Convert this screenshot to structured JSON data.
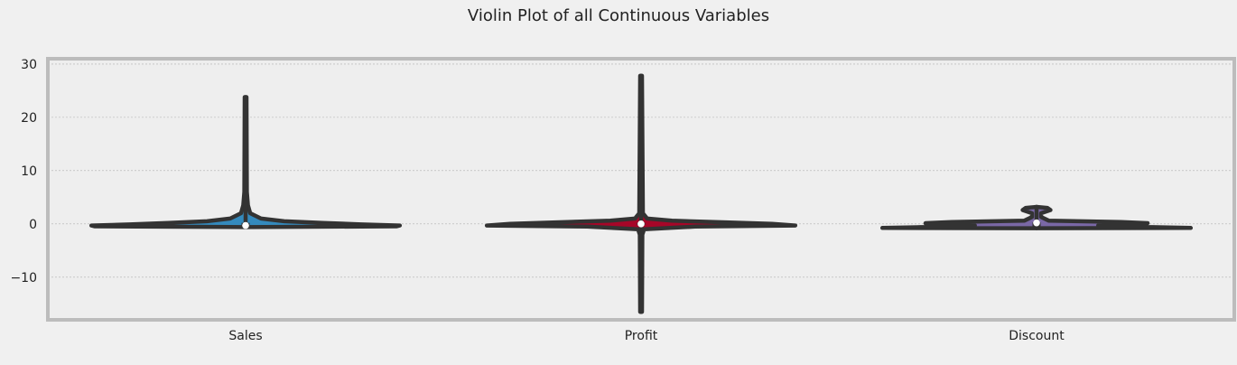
{
  "chart_data": {
    "type": "violin",
    "title": "Violin Plot of all Continuous Variables",
    "xlabel": "",
    "ylabel": "",
    "categories": [
      "Sales",
      "Profit",
      "Discount"
    ],
    "ylim": [
      -18,
      31
    ],
    "yticks": [
      -10,
      0,
      10,
      20,
      30
    ],
    "grid": true,
    "colors": {
      "Sales": "#348abd",
      "Profit": "#a60628",
      "Discount": "#7a68a6",
      "outline": "#333333",
      "plot_bg": "#eeeeee",
      "figure_bg": "#f0f0f0",
      "frame": "#bcbcbc",
      "grid": "#b0b0b0"
    },
    "series": [
      {
        "category": "Sales",
        "min": -0.6,
        "max": 23.8,
        "median": -0.3,
        "q1": -0.45,
        "q3": 0.2,
        "density": [
          [
            -0.6,
            0
          ],
          [
            -0.45,
            0.98
          ],
          [
            -0.3,
            1.0
          ],
          [
            -0.1,
            0.75
          ],
          [
            0.2,
            0.5
          ],
          [
            0.5,
            0.25
          ],
          [
            1.0,
            0.1
          ],
          [
            2,
            0.03
          ],
          [
            3.5,
            0.015
          ],
          [
            6,
            0.008
          ],
          [
            23.8,
            0.006
          ]
        ]
      },
      {
        "category": "Profit",
        "min": -16.5,
        "max": 27.8,
        "median": 0.0,
        "q1": -0.2,
        "q3": 0.2,
        "density": [
          [
            -16.5,
            0.006
          ],
          [
            -2,
            0.008
          ],
          [
            -1,
            0.02
          ],
          [
            -0.5,
            0.35
          ],
          [
            -0.3,
            1.0
          ],
          [
            0.0,
            0.85
          ],
          [
            0.3,
            0.55
          ],
          [
            0.6,
            0.2
          ],
          [
            1.0,
            0.04
          ],
          [
            2.0,
            0.012
          ],
          [
            27.8,
            0.006
          ]
        ]
      },
      {
        "category": "Discount",
        "min": -0.8,
        "max": 3.2,
        "median": 0.2,
        "q1": -0.7,
        "q3": 0.3,
        "density": [
          [
            -0.8,
            0
          ],
          [
            -0.75,
            1.0
          ],
          [
            -0.6,
            0.75
          ],
          [
            -0.3,
            0.4
          ],
          [
            0.0,
            0.55
          ],
          [
            0.15,
            0.72
          ],
          [
            0.35,
            0.55
          ],
          [
            0.6,
            0.08
          ],
          [
            1.3,
            0.03
          ],
          [
            2.0,
            0.03
          ],
          [
            2.6,
            0.09
          ],
          [
            3.0,
            0.07
          ],
          [
            3.2,
            0
          ]
        ]
      }
    ]
  }
}
